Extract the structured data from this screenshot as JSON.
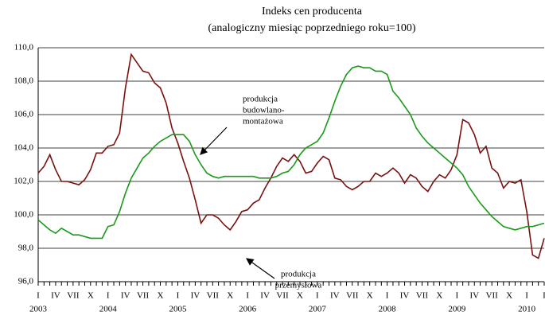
{
  "chart_data": {
    "type": "line",
    "title": [
      "Indeks cen producenta",
      "(analogiczny miesiąc poprzedniego roku=100)"
    ],
    "categories": [
      "I",
      null,
      null,
      "IV",
      null,
      null,
      "VII",
      null,
      null,
      "X",
      null,
      null,
      "I",
      null,
      null,
      "IV",
      null,
      null,
      "VII",
      null,
      null,
      "X",
      null,
      null,
      "I",
      null,
      null,
      "IV",
      null,
      null,
      "VII",
      null,
      null,
      "X",
      null,
      null,
      "I",
      null,
      null,
      "IV",
      null,
      null,
      "VII",
      null,
      null,
      "X",
      null,
      null,
      "I",
      null,
      null,
      "IV",
      null,
      null,
      "VII",
      null,
      null,
      "X",
      null,
      null,
      "I",
      null,
      null,
      "IV",
      null,
      null,
      "VII",
      null,
      null,
      "X",
      null,
      null,
      "I",
      null,
      null,
      "IV",
      null,
      null,
      "VII",
      null,
      null,
      "X",
      null,
      null,
      "I",
      null,
      null,
      "I"
    ],
    "year_labels": [
      "2003",
      "2004",
      "2005",
      "2006",
      "2007",
      "2008",
      "2009",
      "2010"
    ],
    "series": [
      {
        "name": "produkcja przemysłowa",
        "color": "#7b1010",
        "values": [
          102.5,
          102.9,
          103.6,
          102.7,
          102.0,
          102.0,
          101.9,
          101.8,
          102.1,
          102.7,
          103.7,
          103.7,
          104.1,
          104.2,
          104.9,
          107.6,
          109.6,
          109.1,
          108.6,
          108.5,
          107.9,
          107.6,
          106.7,
          105.2,
          104.3,
          103.2,
          102.2,
          100.9,
          99.5,
          100.0,
          100.0,
          99.8,
          99.4,
          99.1,
          99.6,
          100.2,
          100.3,
          100.7,
          100.9,
          101.6,
          102.2,
          102.9,
          103.4,
          103.2,
          103.6,
          103.2,
          102.5,
          102.6,
          103.1,
          103.5,
          103.3,
          102.2,
          102.1,
          101.7,
          101.5,
          101.7,
          102.0,
          102.0,
          102.5,
          102.3,
          102.5,
          102.8,
          102.5,
          101.9,
          102.4,
          102.2,
          101.7,
          101.4,
          102.0,
          102.4,
          102.2,
          102.7,
          103.6,
          105.7,
          105.5,
          104.8,
          103.7,
          104.1,
          102.8,
          102.5,
          101.6,
          102.0,
          101.9,
          102.1,
          100.2,
          97.6,
          97.4,
          98.6
        ]
      },
      {
        "name": "produkcja budowlano-montażowa",
        "color": "#1a9a1a",
        "values": [
          99.7,
          99.4,
          99.1,
          98.9,
          99.2,
          99.0,
          98.8,
          98.8,
          98.7,
          98.6,
          98.6,
          98.6,
          99.3,
          99.4,
          100.2,
          101.3,
          102.2,
          102.8,
          103.4,
          103.7,
          104.1,
          104.4,
          104.6,
          104.8,
          104.8,
          104.8,
          104.4,
          103.6,
          103.0,
          102.5,
          102.3,
          102.2,
          102.3,
          102.3,
          102.3,
          102.3,
          102.3,
          102.3,
          102.2,
          102.2,
          102.2,
          102.3,
          102.5,
          102.6,
          103.0,
          103.6,
          104.0,
          104.2,
          104.4,
          104.9,
          105.8,
          106.8,
          107.7,
          108.4,
          108.8,
          108.9,
          108.8,
          108.8,
          108.6,
          108.6,
          108.4,
          107.4,
          107.0,
          106.5,
          106.0,
          105.2,
          104.7,
          104.3,
          104.0,
          103.7,
          103.4,
          103.1,
          102.8,
          102.4,
          101.7,
          101.2,
          100.7,
          100.3,
          99.9,
          99.6,
          99.3,
          99.2,
          99.1,
          99.2,
          99.3,
          99.3,
          99.4,
          99.5
        ]
      }
    ],
    "annotations": [
      {
        "lines": [
          "produkcja",
          "budowlano-",
          "montażowa"
        ]
      },
      {
        "lines": [
          "produkcja",
          "przemysłowa"
        ]
      }
    ],
    "ylim": [
      96,
      110
    ],
    "yticks": [
      {
        "value": 96,
        "label": "96,0"
      },
      {
        "value": 98,
        "label": "98,0"
      },
      {
        "value": 100,
        "label": "100,0"
      },
      {
        "value": 102,
        "label": "102,0"
      },
      {
        "value": 104,
        "label": "104,0"
      },
      {
        "value": 106,
        "label": "106,0"
      },
      {
        "value": 108,
        "label": "108,0"
      },
      {
        "value": 110,
        "label": "110,0"
      }
    ],
    "grid": true
  }
}
